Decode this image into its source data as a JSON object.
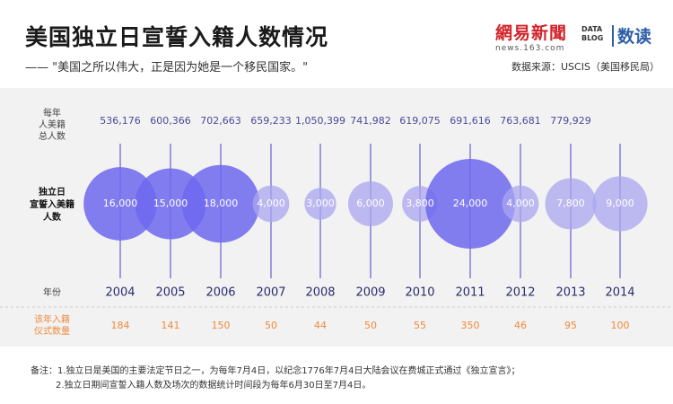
{
  "header": {
    "title": "美国独立日宣誓入籍人数情况",
    "subtitle": "—— \"美国之所以伟大，正是因为她是一个移民国家。\"",
    "source": "数据来源：USCIS（美国移民局）",
    "logo_netease_cn": "網易新聞",
    "logo_netease_en": "news.163.com",
    "logo_datablog_line1": "DATA",
    "logo_datablog_line2": "BLOG",
    "logo_datablog_cn": "数读"
  },
  "labels": {
    "total_label": [
      "每年",
      "人美籍",
      "总人数"
    ],
    "oath_label": [
      "独立日",
      "宣誓入美籍",
      "人数"
    ],
    "year_label": "年份",
    "ceremony_label": [
      "该年入籍",
      "仪式数量"
    ]
  },
  "chart_data": {
    "type": "bubble",
    "x": [
      "2004",
      "2005",
      "2006",
      "2007",
      "2008",
      "2009",
      "2010",
      "2011",
      "2012",
      "2013",
      "2014"
    ],
    "annual_total_display": [
      "536,176",
      "600,366",
      "702,663",
      "659,233",
      "1,050,399",
      "741,982",
      "619,075",
      "691,616",
      "763,681",
      "779,929"
    ],
    "independence_day_oath_display": [
      "16,000",
      "15,000",
      "18,000",
      "4,000",
      "3,000",
      "6,000",
      "3,800",
      "24,000",
      "4,000",
      "7,800",
      "9,000"
    ],
    "independence_day_oath": [
      16000,
      15000,
      18000,
      4000,
      3000,
      6000,
      3800,
      24000,
      4000,
      7800,
      9000
    ],
    "ceremony_count": [
      184,
      141,
      150,
      50,
      44,
      50,
      55,
      350,
      46,
      95,
      100
    ],
    "colors": {
      "bubble": "#7b76f2",
      "bubble_large": "#6f69ef",
      "line": "#9e9bdc",
      "number": "#4a4a9a",
      "ceremony": "#f08a3c"
    }
  },
  "notes": [
    "备注：1.独立日是美国的主要法定节日之一，为每年7月4日，以纪念1776年7月4日大陆会议在费城正式通过《独立宣言》；",
    "2.独立日期间宣誓入籍人数及场次的数据统计时间段为每年6月30日至7月4日。"
  ]
}
